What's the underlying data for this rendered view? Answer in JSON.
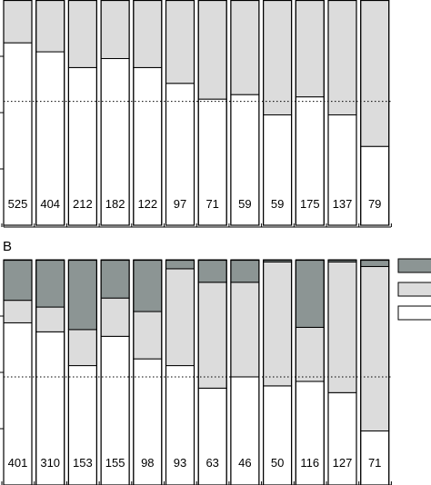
{
  "chart_data": [
    {
      "panel": "",
      "type": "bar",
      "stacked": true,
      "normalized": true,
      "bar_count_labels": [
        "525",
        "404",
        "212",
        "182",
        "122",
        "97",
        "71",
        "59",
        "59",
        "175",
        "137",
        "79"
      ],
      "series": [
        {
          "name": "",
          "color": "#ffffff",
          "values": [
            0.81,
            0.77,
            0.7,
            0.74,
            0.7,
            0.63,
            0.56,
            0.58,
            0.49,
            0.57,
            0.49,
            0.35
          ]
        },
        {
          "name": "",
          "color": "#dcdcdc",
          "values": [
            0.19,
            0.23,
            0.3,
            0.26,
            0.3,
            0.37,
            0.44,
            0.42,
            0.51,
            0.43,
            0.51,
            0.65
          ]
        }
      ],
      "reference_line": 0.55,
      "ylim": [
        0,
        1
      ]
    },
    {
      "panel": "B",
      "type": "bar",
      "stacked": true,
      "normalized": true,
      "bar_count_labels": [
        "401",
        "310",
        "153",
        "155",
        "98",
        "93",
        "63",
        "46",
        "50",
        "116",
        "127",
        "71"
      ],
      "series": [
        {
          "name": "",
          "color": "#ffffff",
          "values": [
            0.72,
            0.68,
            0.53,
            0.66,
            0.56,
            0.53,
            0.43,
            0.48,
            0.44,
            0.46,
            0.41,
            0.24
          ]
        },
        {
          "name": "",
          "color": "#dcdcdc",
          "values": [
            0.1,
            0.11,
            0.16,
            0.17,
            0.21,
            0.43,
            0.47,
            0.42,
            0.55,
            0.24,
            0.58,
            0.73
          ]
        },
        {
          "name": "",
          "color": "#8c9594",
          "values": [
            0.18,
            0.21,
            0.31,
            0.17,
            0.23,
            0.04,
            0.1,
            0.1,
            0.01,
            0.3,
            0.01,
            0.03
          ]
        }
      ],
      "reference_line": 0.48,
      "ylim": [
        0,
        1
      ]
    }
  ],
  "legend": {
    "colors": [
      "#8c9594",
      "#dcdcdc",
      "#ffffff"
    ]
  }
}
